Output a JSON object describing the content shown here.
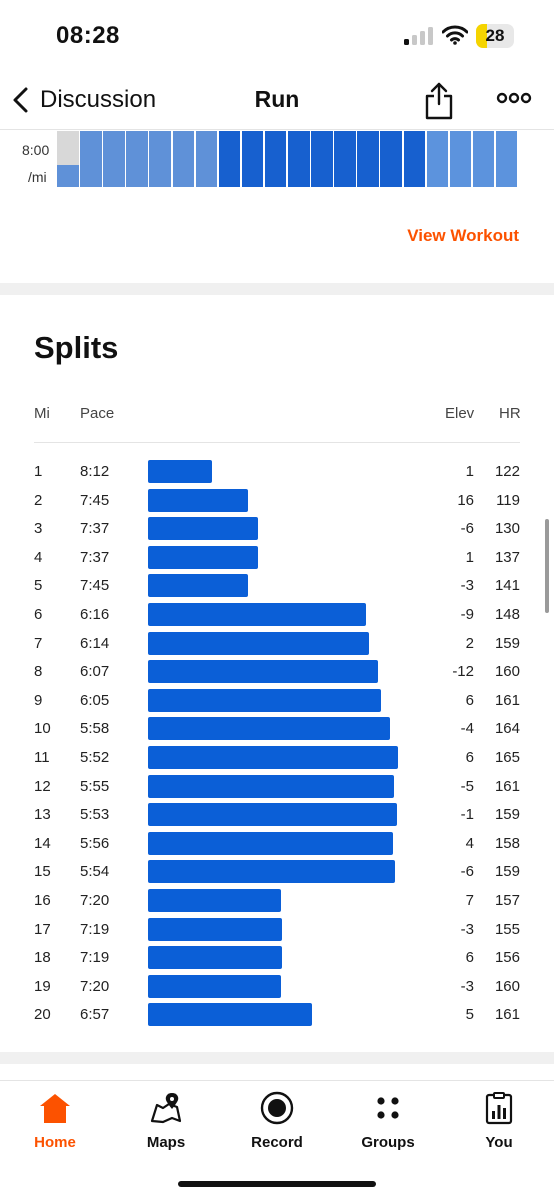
{
  "status_bar": {
    "time": "08:28",
    "battery": "28",
    "battery_level": 0.28
  },
  "nav": {
    "back_label": "Discussion",
    "title": "Run",
    "share_icon": "share-icon",
    "more_icon": "more-icon"
  },
  "pace_chart": {
    "y_label_1": "8:00",
    "y_label_2": "/mi"
  },
  "workout": {
    "view_label": "View Workout"
  },
  "splits": {
    "title": "Splits",
    "columns": {
      "mi": "Mi",
      "pace": "Pace",
      "elev": "Elev",
      "hr": "HR"
    },
    "rows": [
      {
        "mi": "1",
        "pace": "8:12",
        "elev": "1",
        "hr": "122"
      },
      {
        "mi": "2",
        "pace": "7:45",
        "elev": "16",
        "hr": "119"
      },
      {
        "mi": "3",
        "pace": "7:37",
        "elev": "-6",
        "hr": "130"
      },
      {
        "mi": "4",
        "pace": "7:37",
        "elev": "1",
        "hr": "137"
      },
      {
        "mi": "5",
        "pace": "7:45",
        "elev": "-3",
        "hr": "141"
      },
      {
        "mi": "6",
        "pace": "6:16",
        "elev": "-9",
        "hr": "148"
      },
      {
        "mi": "7",
        "pace": "6:14",
        "elev": "2",
        "hr": "159"
      },
      {
        "mi": "8",
        "pace": "6:07",
        "elev": "-12",
        "hr": "160"
      },
      {
        "mi": "9",
        "pace": "6:05",
        "elev": "6",
        "hr": "161"
      },
      {
        "mi": "10",
        "pace": "5:58",
        "elev": "-4",
        "hr": "164"
      },
      {
        "mi": "11",
        "pace": "5:52",
        "elev": "6",
        "hr": "165"
      },
      {
        "mi": "12",
        "pace": "5:55",
        "elev": "-5",
        "hr": "161"
      },
      {
        "mi": "13",
        "pace": "5:53",
        "elev": "-1",
        "hr": "159"
      },
      {
        "mi": "14",
        "pace": "5:56",
        "elev": "4",
        "hr": "158"
      },
      {
        "mi": "15",
        "pace": "5:54",
        "elev": "-6",
        "hr": "159"
      },
      {
        "mi": "16",
        "pace": "7:20",
        "elev": "7",
        "hr": "157"
      },
      {
        "mi": "17",
        "pace": "7:19",
        "elev": "-3",
        "hr": "155"
      },
      {
        "mi": "18",
        "pace": "7:19",
        "elev": "6",
        "hr": "156"
      },
      {
        "mi": "19",
        "pace": "7:20",
        "elev": "-3",
        "hr": "160"
      },
      {
        "mi": "20",
        "pace": "6:57",
        "elev": "5",
        "hr": "161"
      }
    ]
  },
  "tabs": [
    {
      "label": "Home",
      "icon": "home-icon",
      "active": true
    },
    {
      "label": "Maps",
      "icon": "map-icon",
      "active": false
    },
    {
      "label": "Record",
      "icon": "record-icon",
      "active": false
    },
    {
      "label": "Groups",
      "icon": "groups-icon",
      "active": false
    },
    {
      "label": "You",
      "icon": "profile-icon",
      "active": false
    }
  ],
  "colors": {
    "accent": "#fc5200",
    "bar": "#0b5fd7"
  }
}
